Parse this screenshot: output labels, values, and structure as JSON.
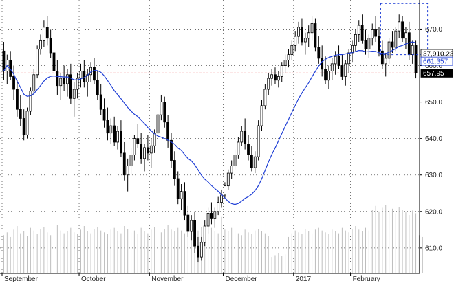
{
  "chart_data": {
    "type": "candlestick",
    "title": "",
    "xlabel": "",
    "ylabel": "",
    "ylim": [
      603,
      678
    ],
    "y_ticks": [
      610,
      620,
      630,
      640,
      650,
      660,
      670
    ],
    "y_tick_labels": [
      "610.0",
      "620.0",
      "630.0",
      "640.0",
      "650.0",
      "660.0",
      "670.0"
    ],
    "x_labels": [
      {
        "label": "September",
        "bar": 0
      },
      {
        "label": "October",
        "bar": 23
      },
      {
        "label": "November",
        "bar": 44
      },
      {
        "label": "December",
        "bar": 66
      },
      {
        "label": "2017",
        "bar": 87
      },
      {
        "label": "February",
        "bar": 104
      }
    ],
    "grid": true,
    "reference_line": {
      "value": 657.95,
      "color": "#e53935"
    },
    "price_tags": [
      {
        "label": "37,910.23",
        "value": 663.3,
        "bg": "#ffffff",
        "fg": "#000000",
        "border": "#000000"
      },
      {
        "label": "661.357",
        "value": 661.2,
        "bg": "#ffffff",
        "fg": "#1f3fd6",
        "border": "#1f3fd6"
      },
      {
        "label": "657.95",
        "value": 657.95,
        "bg": "#000000",
        "fg": "#ffffff",
        "border": "#000000"
      }
    ],
    "selection_box": {
      "bar_start": 113,
      "bar_end": 126,
      "y_top": 677,
      "y_bottom": 663
    },
    "moving_average": {
      "name": "",
      "color": "#1f3fd6"
    },
    "ohlc": [
      [
        664.0,
        666.5,
        656.0,
        658.5
      ],
      [
        658.5,
        663.0,
        655.0,
        661.5
      ],
      [
        661.5,
        664.0,
        656.0,
        657.0
      ],
      [
        657.0,
        660.0,
        650.5,
        653.5
      ],
      [
        653.5,
        656.0,
        646.0,
        648.0
      ],
      [
        648.0,
        652.0,
        643.5,
        645.5
      ],
      [
        645.5,
        648.0,
        639.5,
        641.0
      ],
      [
        641.0,
        648.5,
        640.0,
        647.5
      ],
      [
        647.5,
        654.0,
        646.5,
        653.0
      ],
      [
        653.0,
        659.0,
        652.0,
        657.5
      ],
      [
        657.5,
        665.5,
        656.5,
        664.5
      ],
      [
        664.5,
        668.5,
        663.0,
        667.0
      ],
      [
        667.0,
        672.5,
        665.0,
        670.5
      ],
      [
        670.5,
        673.5,
        665.5,
        667.5
      ],
      [
        667.5,
        670.0,
        662.0,
        663.5
      ],
      [
        663.5,
        666.5,
        656.5,
        658.5
      ],
      [
        658.5,
        661.5,
        652.0,
        654.5
      ],
      [
        654.5,
        658.0,
        650.5,
        656.5
      ],
      [
        656.5,
        660.0,
        653.0,
        655.0
      ],
      [
        655.0,
        659.0,
        651.5,
        657.5
      ],
      [
        657.5,
        660.5,
        649.5,
        651.0
      ],
      [
        651.0,
        655.5,
        646.0,
        653.5
      ],
      [
        653.5,
        658.0,
        651.0,
        656.5
      ],
      [
        656.5,
        660.5,
        654.0,
        658.5
      ],
      [
        658.5,
        661.5,
        654.0,
        655.5
      ],
      [
        655.5,
        659.0,
        651.5,
        657.5
      ],
      [
        657.5,
        661.0,
        655.5,
        659.5
      ],
      [
        659.5,
        662.0,
        655.0,
        656.0
      ],
      [
        656.0,
        658.5,
        650.5,
        652.0
      ],
      [
        652.0,
        655.0,
        646.5,
        648.0
      ],
      [
        648.0,
        651.0,
        643.0,
        645.0
      ],
      [
        645.0,
        648.5,
        639.5,
        641.5
      ],
      [
        641.5,
        645.5,
        638.5,
        643.5
      ],
      [
        643.5,
        646.0,
        638.0,
        639.0
      ],
      [
        639.0,
        643.5,
        637.0,
        642.0
      ],
      [
        642.0,
        645.0,
        635.0,
        636.0
      ],
      [
        636.0,
        639.0,
        628.5,
        630.0
      ],
      [
        630.0,
        634.5,
        625.5,
        632.5
      ],
      [
        632.5,
        637.5,
        630.0,
        635.5
      ],
      [
        635.5,
        641.0,
        634.0,
        640.0
      ],
      [
        640.0,
        644.0,
        637.5,
        638.5
      ],
      [
        638.5,
        641.5,
        633.0,
        634.5
      ],
      [
        634.5,
        638.5,
        631.0,
        637.5
      ],
      [
        637.5,
        641.0,
        634.0,
        636.0
      ],
      [
        636.0,
        640.0,
        632.0,
        638.0
      ],
      [
        638.0,
        642.5,
        636.0,
        641.5
      ],
      [
        641.5,
        647.5,
        640.5,
        646.5
      ],
      [
        646.5,
        652.0,
        645.0,
        650.0
      ],
      [
        650.0,
        651.5,
        643.0,
        644.5
      ],
      [
        644.5,
        646.5,
        637.5,
        639.5
      ],
      [
        639.5,
        641.5,
        632.0,
        634.0
      ],
      [
        634.0,
        636.5,
        627.0,
        629.0
      ],
      [
        629.0,
        631.0,
        622.0,
        623.5
      ],
      [
        623.5,
        627.5,
        620.5,
        625.5
      ],
      [
        625.5,
        628.0,
        617.5,
        619.0
      ],
      [
        619.0,
        621.5,
        613.0,
        614.5
      ],
      [
        614.5,
        619.0,
        612.0,
        617.5
      ],
      [
        617.5,
        620.0,
        608.5,
        610.5
      ],
      [
        610.5,
        613.0,
        606.0,
        607.5
      ],
      [
        607.5,
        613.0,
        606.5,
        611.5
      ],
      [
        611.5,
        617.5,
        610.5,
        616.0
      ],
      [
        616.0,
        621.0,
        614.0,
        619.5
      ],
      [
        619.5,
        622.5,
        616.5,
        618.0
      ],
      [
        618.0,
        621.0,
        615.5,
        620.0
      ],
      [
        620.0,
        624.0,
        619.0,
        622.5
      ],
      [
        622.5,
        626.0,
        621.0,
        624.5
      ],
      [
        624.5,
        628.0,
        623.5,
        627.0
      ],
      [
        627.0,
        631.5,
        626.0,
        630.5
      ],
      [
        630.5,
        634.0,
        629.0,
        632.5
      ],
      [
        632.5,
        637.0,
        631.5,
        635.5
      ],
      [
        635.5,
        640.5,
        634.5,
        639.0
      ],
      [
        639.0,
        643.5,
        638.0,
        642.0
      ],
      [
        642.0,
        645.5,
        637.0,
        638.5
      ],
      [
        638.5,
        641.0,
        634.0,
        635.5
      ],
      [
        635.5,
        638.0,
        631.0,
        632.0
      ],
      [
        632.0,
        636.5,
        630.5,
        635.0
      ],
      [
        635.0,
        645.0,
        634.0,
        643.5
      ],
      [
        643.5,
        650.5,
        642.0,
        649.0
      ],
      [
        649.0,
        655.0,
        648.0,
        653.5
      ],
      [
        653.5,
        658.0,
        652.0,
        656.5
      ],
      [
        656.5,
        659.0,
        654.5,
        657.5
      ],
      [
        657.5,
        659.5,
        655.0,
        656.0
      ],
      [
        656.0,
        658.5,
        654.0,
        657.0
      ],
      [
        657.0,
        661.0,
        655.5,
        660.0
      ],
      [
        660.0,
        663.0,
        658.0,
        661.5
      ],
      [
        661.5,
        664.5,
        659.5,
        663.0
      ],
      [
        663.0,
        667.0,
        661.5,
        665.5
      ],
      [
        665.5,
        669.5,
        664.0,
        668.0
      ],
      [
        668.0,
        672.0,
        666.0,
        670.5
      ],
      [
        670.5,
        673.0,
        665.5,
        666.5
      ],
      [
        666.5,
        669.0,
        663.0,
        667.5
      ],
      [
        667.5,
        671.0,
        665.0,
        669.0
      ],
      [
        669.0,
        673.5,
        667.0,
        671.5
      ],
      [
        671.5,
        673.0,
        664.0,
        665.0
      ],
      [
        665.0,
        668.0,
        660.5,
        662.0
      ],
      [
        662.0,
        665.5,
        657.0,
        659.0
      ],
      [
        659.0,
        662.5,
        655.0,
        656.0
      ],
      [
        656.0,
        660.0,
        653.5,
        658.5
      ],
      [
        658.5,
        662.0,
        656.0,
        660.5
      ],
      [
        660.5,
        664.0,
        657.5,
        662.5
      ],
      [
        662.5,
        665.5,
        659.0,
        660.0
      ],
      [
        660.0,
        663.0,
        656.0,
        657.0
      ],
      [
        657.0,
        661.5,
        654.5,
        660.5
      ],
      [
        660.5,
        664.5,
        658.0,
        663.5
      ],
      [
        663.5,
        667.0,
        661.0,
        665.5
      ],
      [
        665.5,
        670.0,
        664.0,
        668.5
      ],
      [
        668.5,
        672.5,
        666.5,
        671.0
      ],
      [
        671.0,
        674.0,
        666.0,
        667.0
      ],
      [
        667.0,
        670.0,
        663.0,
        664.5
      ],
      [
        664.5,
        668.5,
        662.0,
        667.5
      ],
      [
        667.5,
        671.5,
        665.5,
        670.0
      ],
      [
        670.0,
        673.5,
        666.5,
        668.0
      ],
      [
        668.0,
        670.5,
        662.5,
        664.0
      ],
      [
        664.0,
        667.0,
        659.0,
        660.5
      ],
      [
        660.5,
        663.5,
        657.0,
        662.0
      ],
      [
        662.0,
        667.5,
        660.5,
        666.5
      ],
      [
        666.5,
        669.5,
        663.5,
        665.0
      ],
      [
        665.0,
        670.5,
        664.0,
        669.5
      ],
      [
        669.5,
        674.0,
        667.5,
        672.0
      ],
      [
        672.0,
        673.5,
        666.5,
        667.5
      ],
      [
        667.5,
        670.5,
        664.5,
        669.0
      ],
      [
        669.0,
        672.0,
        661.5,
        663.0
      ],
      [
        663.0,
        667.0,
        660.5,
        665.5
      ],
      [
        665.5,
        667.0,
        656.5,
        658.0
      ]
    ],
    "volume": [
      0.42,
      0.45,
      0.4,
      0.48,
      0.52,
      0.44,
      0.46,
      0.41,
      0.5,
      0.47,
      0.43,
      0.49,
      0.51,
      0.45,
      0.42,
      0.48,
      0.53,
      0.47,
      0.44,
      0.46,
      0.5,
      0.45,
      0.43,
      0.48,
      0.52,
      0.46,
      0.44,
      0.49,
      0.51,
      0.47,
      0.45,
      0.43,
      0.48,
      0.5,
      0.46,
      0.44,
      0.52,
      0.49,
      0.45,
      0.47,
      0.43,
      0.5,
      0.46,
      0.44,
      0.48,
      0.51,
      0.47,
      0.45,
      0.49,
      0.53,
      0.48,
      0.46,
      0.5,
      0.47,
      0.44,
      0.52,
      0.55,
      0.49,
      0.47,
      0.51,
      0.48,
      0.45,
      0.5,
      0.46,
      0.44,
      0.62,
      0.48,
      0.46,
      0.5,
      0.47,
      0.44,
      0.42,
      0.48,
      0.45,
      0.43,
      0.47,
      0.49,
      0.46,
      0.44,
      0.41,
      0.18,
      0.2,
      0.22,
      0.19,
      0.21,
      0.4,
      0.44,
      0.47,
      0.45,
      0.43,
      0.49,
      0.46,
      0.44,
      0.48,
      0.5,
      0.47,
      0.45,
      0.43,
      0.48,
      0.46,
      0.44,
      0.5,
      0.47,
      0.45,
      0.49,
      0.52,
      0.48,
      0.46,
      0.5,
      0.47,
      0.7,
      0.74,
      0.68,
      0.72,
      0.75,
      0.69,
      0.71,
      0.66,
      0.73,
      0.7,
      0.67,
      0.64,
      0.69,
      0.66,
      0.42,
      0.4
    ]
  }
}
